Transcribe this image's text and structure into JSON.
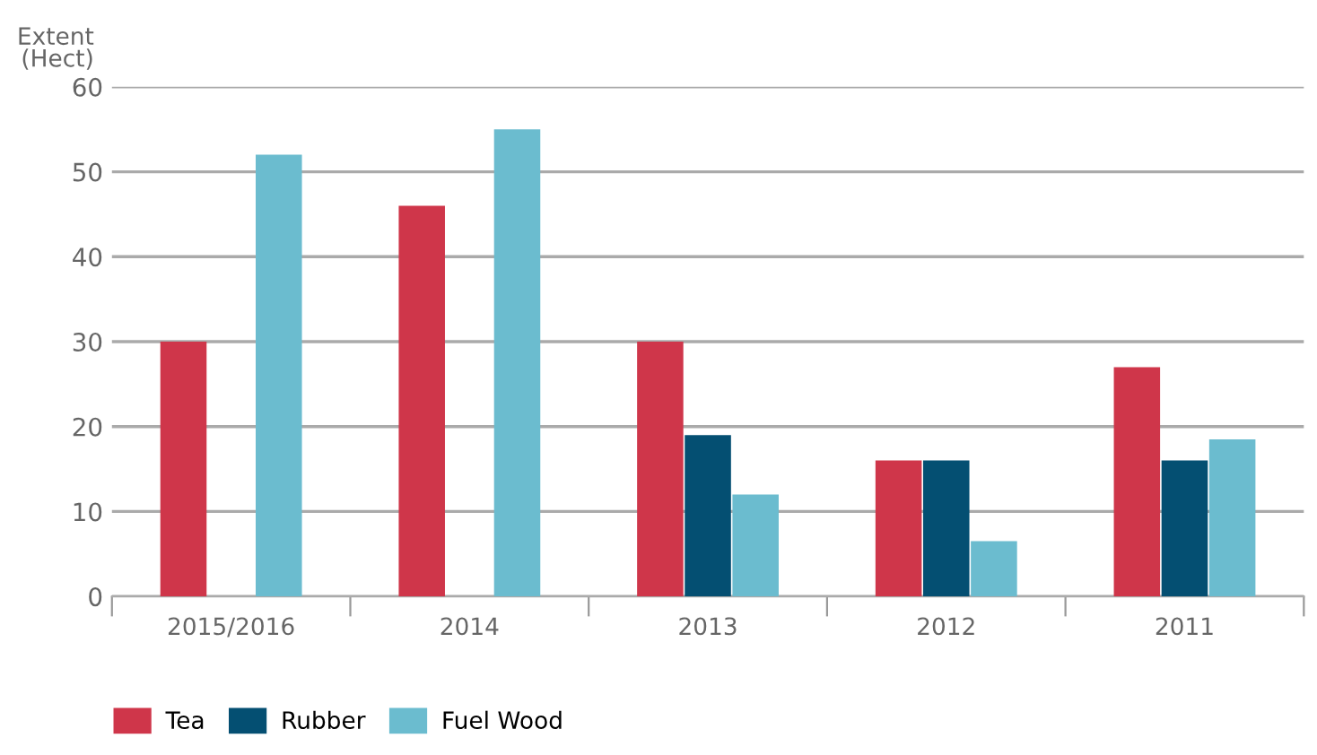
{
  "chart_data": {
    "type": "bar",
    "ylabel": "Extent\n(Hect)",
    "categories": [
      "2015/2016",
      "2014",
      "2013",
      "2012",
      "2011"
    ],
    "series": [
      {
        "name": "Tea",
        "color": "#cf364a",
        "values": [
          30,
          46,
          30,
          16,
          27
        ]
      },
      {
        "name": "Rubber",
        "color": "#044f72",
        "values": [
          null,
          null,
          19,
          16,
          16
        ]
      },
      {
        "name": "Fuel Wood",
        "color": "#6bbccf",
        "values": [
          52,
          55,
          12,
          6.5,
          18.5
        ]
      }
    ],
    "ylim": [
      0,
      60
    ],
    "yticks": [
      0,
      10,
      20,
      30,
      40,
      50,
      60
    ],
    "grid": "y",
    "legend": "bottom left"
  }
}
